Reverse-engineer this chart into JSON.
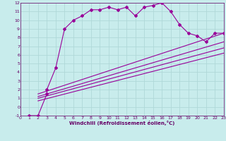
{
  "background_color": "#c8ecec",
  "grid_color": "#b0d8d8",
  "line_color": "#990099",
  "label_color": "#660066",
  "xlim": [
    0,
    23
  ],
  "ylim": [
    -1,
    12
  ],
  "xticks": [
    0,
    1,
    2,
    3,
    4,
    5,
    6,
    7,
    8,
    9,
    10,
    11,
    12,
    13,
    14,
    15,
    16,
    17,
    18,
    19,
    20,
    21,
    22,
    23
  ],
  "yticks": [
    -1,
    0,
    1,
    2,
    3,
    4,
    5,
    6,
    7,
    8,
    9,
    10,
    11,
    12
  ],
  "xlabel": "Windchill (Refroidissement éolien,°C)",
  "series1_x": [
    1,
    2,
    3,
    3,
    4,
    5,
    6,
    7,
    8,
    9,
    10,
    11,
    12,
    13,
    14,
    15,
    16,
    17,
    18,
    19,
    20,
    21,
    22,
    23
  ],
  "series1_y": [
    -1,
    -1,
    1.5,
    2.0,
    4.5,
    9.0,
    10.0,
    10.5,
    11.2,
    11.2,
    11.5,
    11.2,
    11.5,
    10.5,
    11.5,
    11.7,
    12.0,
    11.0,
    9.5,
    8.5,
    8.2,
    7.5,
    8.5,
    8.5
  ],
  "lines": [
    {
      "x": [
        2,
        23
      ],
      "y": [
        1.5,
        8.5
      ]
    },
    {
      "x": [
        2,
        23
      ],
      "y": [
        1.2,
        7.5
      ]
    },
    {
      "x": [
        2,
        23
      ],
      "y": [
        1.0,
        6.8
      ]
    },
    {
      "x": [
        2,
        23
      ],
      "y": [
        0.7,
        6.2
      ]
    }
  ]
}
